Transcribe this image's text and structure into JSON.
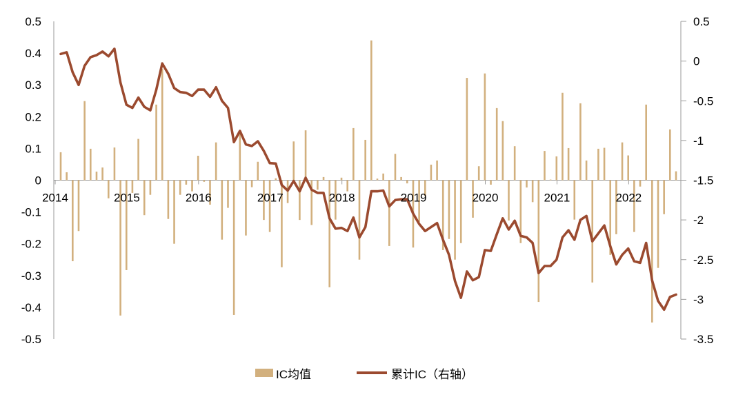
{
  "chart_data": {
    "type": "bar+line",
    "title": "",
    "x": [
      "2014-01",
      "2014-02",
      "2014-03",
      "2014-04",
      "2014-05",
      "2014-06",
      "2014-07",
      "2014-08",
      "2014-09",
      "2014-10",
      "2014-11",
      "2014-12",
      "2015-01",
      "2015-02",
      "2015-03",
      "2015-04",
      "2015-05",
      "2015-06",
      "2015-07",
      "2015-08",
      "2015-09",
      "2015-10",
      "2015-11",
      "2015-12",
      "2016-01",
      "2016-02",
      "2016-03",
      "2016-04",
      "2016-05",
      "2016-06",
      "2016-07",
      "2016-08",
      "2016-09",
      "2016-10",
      "2016-11",
      "2016-12",
      "2017-01",
      "2017-02",
      "2017-03",
      "2017-04",
      "2017-05",
      "2017-06",
      "2017-07",
      "2017-08",
      "2017-09",
      "2017-10",
      "2017-11",
      "2017-12",
      "2018-01",
      "2018-02",
      "2018-03",
      "2018-04",
      "2018-05",
      "2018-06",
      "2018-07",
      "2018-08",
      "2018-09",
      "2018-10",
      "2018-11",
      "2018-12",
      "2019-01",
      "2019-02",
      "2019-03",
      "2019-04",
      "2019-05",
      "2019-06",
      "2019-07",
      "2019-08",
      "2019-09",
      "2019-10",
      "2019-11",
      "2019-12",
      "2020-01",
      "2020-02",
      "2020-03",
      "2020-04",
      "2020-05",
      "2020-06",
      "2020-07",
      "2020-08",
      "2020-09",
      "2020-10",
      "2020-11",
      "2020-12",
      "2021-01",
      "2021-02",
      "2021-03",
      "2021-04",
      "2021-05",
      "2021-06",
      "2021-07",
      "2021-08",
      "2021-09",
      "2021-10",
      "2021-11",
      "2021-12",
      "2022-01",
      "2022-02",
      "2022-03",
      "2022-04",
      "2022-05",
      "2022-06",
      "2022-07",
      "2022-08"
    ],
    "x_tick_labels": [
      "2014",
      "2015",
      "2016",
      "2017",
      "2018",
      "2019",
      "2020",
      "2021",
      "2022"
    ],
    "y_left": {
      "range": [
        -0.5,
        0.5
      ],
      "tick_labels": [
        "0.5",
        "0.4",
        "0.3",
        "0.2",
        "0.1",
        "0",
        "-0.1",
        "-0.2",
        "-0.3",
        "-0.4",
        "-0.5"
      ]
    },
    "y_right": {
      "range": [
        -3.5,
        0.5
      ],
      "tick_labels": [
        "0.5",
        "0",
        "-0.5",
        "-1",
        "-1.5",
        "-2",
        "-2.5",
        "-3",
        "-3.5"
      ]
    },
    "grid": false,
    "legend_position": "bottom",
    "series": [
      {
        "name": "IC均值",
        "type": "bar",
        "axis": "left",
        "color": "#d2b07e",
        "values": [
          0.088,
          0.025,
          -0.255,
          -0.16,
          0.249,
          0.099,
          0.027,
          0.04,
          -0.057,
          0.103,
          -0.426,
          -0.283,
          -0.04,
          0.13,
          -0.11,
          -0.046,
          0.238,
          0.35,
          -0.122,
          -0.2,
          -0.046,
          -0.014,
          -0.035,
          0.077,
          -0.005,
          -0.077,
          0.119,
          -0.187,
          -0.087,
          -0.424,
          0.155,
          -0.174,
          -0.022,
          0.058,
          -0.125,
          -0.163,
          0.006,
          -0.274,
          -0.072,
          0.122,
          -0.125,
          0.157,
          -0.141,
          -0.03,
          0.01,
          -0.337,
          -0.124,
          0.008,
          -0.035,
          0.164,
          -0.25,
          0.127,
          0.44,
          0.005,
          0.021,
          -0.207,
          0.083,
          0.01,
          -0.01,
          -0.212,
          -0.131,
          -0.05,
          0.049,
          0.062,
          -0.22,
          -0.185,
          -0.25,
          -0.198,
          0.322,
          -0.118,
          0.044,
          0.336,
          -0.014,
          0.227,
          0.186,
          -0.127,
          0.107,
          -0.198,
          -0.023,
          -0.069,
          -0.383,
          0.092,
          0.002,
          0.075,
          0.275,
          0.101,
          -0.124,
          0.242,
          0.062,
          -0.322,
          0.099,
          0.102,
          -0.235,
          -0.17,
          0.119,
          0.078,
          -0.163,
          -0.02,
          0.238,
          -0.448,
          -0.276,
          -0.107,
          0.16,
          0.028
        ]
      },
      {
        "name": "累计IC（右轴）",
        "type": "line",
        "axis": "right",
        "color": "#9b4a2f",
        "values": [
          0.09,
          0.11,
          -0.14,
          -0.3,
          -0.06,
          0.05,
          0.075,
          0.12,
          0.06,
          0.155,
          -0.27,
          -0.55,
          -0.59,
          -0.46,
          -0.576,
          -0.62,
          -0.36,
          -0.03,
          -0.16,
          -0.34,
          -0.39,
          -0.4,
          -0.44,
          -0.36,
          -0.36,
          -0.45,
          -0.33,
          -0.5,
          -0.59,
          -1.02,
          -0.88,
          -1.05,
          -1.07,
          -1.01,
          -1.13,
          -1.285,
          -1.29,
          -1.56,
          -1.63,
          -1.51,
          -1.64,
          -1.47,
          -1.62,
          -1.66,
          -1.66,
          -1.98,
          -2.11,
          -2.1,
          -2.14,
          -1.97,
          -2.22,
          -2.09,
          -1.64,
          -1.64,
          -1.63,
          -1.83,
          -1.75,
          -1.74,
          -1.74,
          -1.92,
          -2.05,
          -2.14,
          -2.09,
          -2.04,
          -2.25,
          -2.44,
          -2.77,
          -2.98,
          -2.65,
          -2.76,
          -2.72,
          -2.38,
          -2.39,
          -2.18,
          -1.98,
          -2.12,
          -2.01,
          -2.2,
          -2.22,
          -2.29,
          -2.67,
          -2.58,
          -2.58,
          -2.5,
          -2.22,
          -2.13,
          -2.25,
          -2.0,
          -1.95,
          -2.27,
          -2.17,
          -2.07,
          -2.33,
          -2.56,
          -2.44,
          -2.36,
          -2.52,
          -2.54,
          -2.29,
          -2.76,
          -3.02,
          -3.13,
          -2.97,
          -2.94
        ]
      }
    ]
  },
  "legend": {
    "bar_label": "IC均值",
    "line_label": "累计IC（右轴）"
  }
}
